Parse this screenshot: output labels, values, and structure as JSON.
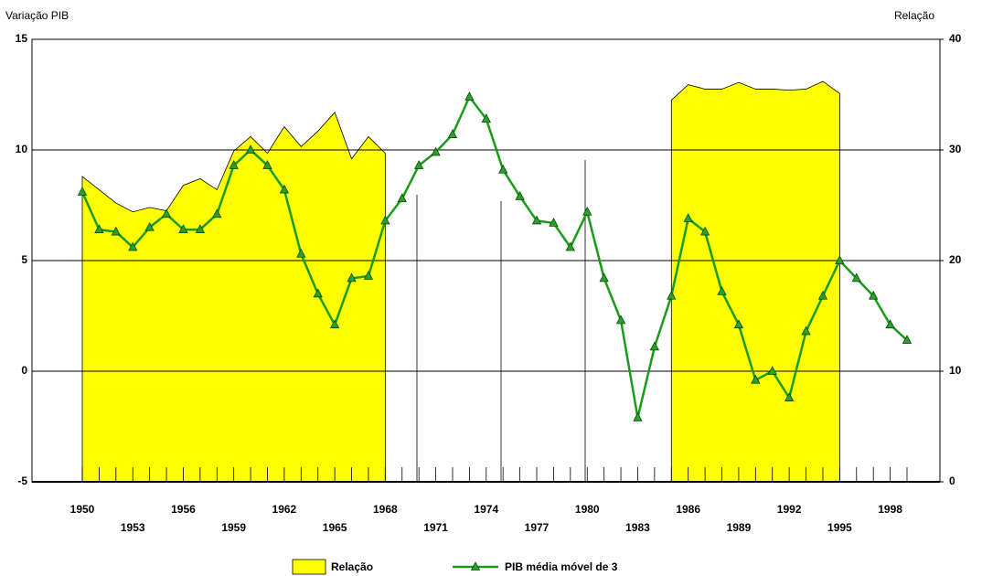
{
  "chart_data": {
    "type": "line",
    "y_label": "Variação PIB",
    "y2_label": "Relação",
    "categories": [
      "1950",
      null,
      null,
      "1953",
      null,
      null,
      "1956",
      null,
      null,
      "1959",
      null,
      null,
      "1962",
      null,
      null,
      "1965",
      null,
      null,
      "1968",
      null,
      null,
      "1971",
      null,
      null,
      "1974",
      null,
      null,
      "1977",
      null,
      null,
      "1980",
      null,
      null,
      "1983",
      null,
      null,
      "1986",
      null,
      null,
      "1989",
      null,
      null,
      "1992",
      null,
      null,
      "1995",
      null,
      null,
      "1998",
      null
    ],
    "series": [
      {
        "name": "Relação",
        "type": "area",
        "axis": "y2",
        "color": "#ffff00",
        "values": [
          27.6,
          26.4,
          25.2,
          24.4,
          24.8,
          24.5,
          26.8,
          27.4,
          26.4,
          29.9,
          31.2,
          29.7,
          32.1,
          30.3,
          31.7,
          33.4,
          29.2,
          31.2,
          29.7,
          null,
          null,
          null,
          null,
          null,
          null,
          null,
          null,
          null,
          null,
          null,
          null,
          null,
          null,
          null,
          null,
          34.5,
          35.9,
          35.5,
          35.5,
          36.1,
          35.5,
          35.5,
          35.4,
          35.5,
          36.2,
          35.1,
          null,
          null,
          null,
          null
        ]
      },
      {
        "name": "PIB média móvel de 3",
        "type": "line",
        "axis": "y",
        "color": "#1a9c1a",
        "values": [
          8.1,
          6.4,
          6.3,
          5.6,
          6.5,
          7.1,
          6.4,
          6.4,
          7.1,
          9.3,
          10.0,
          9.3,
          8.2,
          5.3,
          3.5,
          2.1,
          4.2,
          4.3,
          6.8,
          7.8,
          9.3,
          9.9,
          10.7,
          12.4,
          11.4,
          9.1,
          7.9,
          6.8,
          6.7,
          5.6,
          7.2,
          4.2,
          2.3,
          -2.1,
          1.1,
          3.4,
          6.9,
          6.3,
          3.6,
          2.1,
          -0.4,
          0.0,
          -1.2,
          1.8,
          3.4,
          5.0,
          4.2,
          3.4,
          2.1,
          1.4
        ]
      }
    ],
    "ylim": [
      -5,
      15
    ],
    "yticks": [
      -5,
      0,
      5,
      10,
      15
    ],
    "y2lim": [
      0,
      40
    ],
    "y2ticks": [
      0,
      10,
      20,
      30,
      40
    ],
    "grid": true
  }
}
